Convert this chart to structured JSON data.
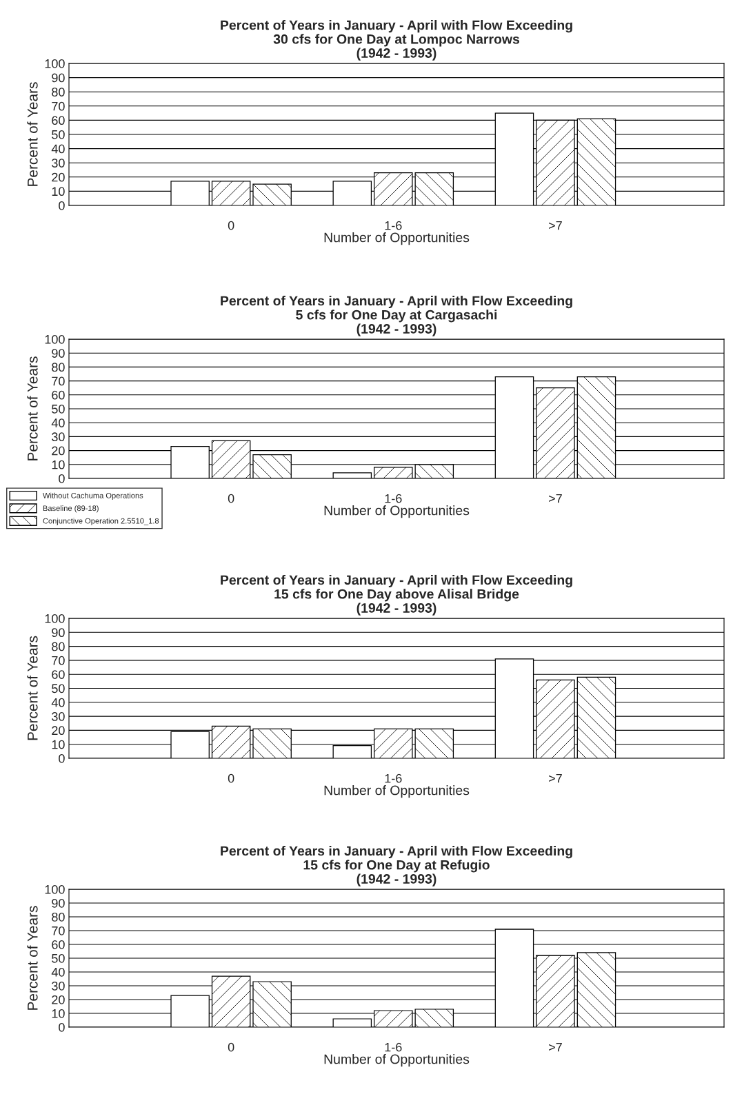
{
  "chart_data": [
    {
      "type": "bar",
      "title": "Percent of Years in January - April with Flow Exceeding\n30 cfs for One Day at Lompoc Narrows\n(1942 - 1993)",
      "xlabel": "Number of Opportunities",
      "ylabel": "Percent of Years",
      "categories": [
        "0",
        "1-6",
        ">7"
      ],
      "series": [
        {
          "color": "#ffffff",
          "values": [
            17,
            17,
            65
          ]
        },
        {
          "color": "#000000",
          "values": [
            17,
            23,
            60
          ]
        },
        {
          "color": "#000000",
          "values": [
            15,
            23,
            61
          ]
        }
      ],
      "ylim": [
        0,
        100
      ],
      "yticks": [
        0,
        10,
        20,
        30,
        40,
        50,
        60,
        70,
        80,
        90,
        100
      ],
      "grid": "y"
    },
    {
      "type": "bar",
      "title": "Percent of Years in January - April with Flow Exceeding\n5 cfs for One Day at Cargasachi\n(1942 - 1993)",
      "xlabel": "Number of Opportunities",
      "ylabel": "Percent of Years",
      "categories": [
        "0",
        "1-6",
        ">7"
      ],
      "series": [
        {
          "name": "Without Cachuma Operations",
          "color": "#ffffff",
          "values": [
            23,
            4,
            73
          ]
        },
        {
          "name": "Baseline (89-18)",
          "color": "#000000",
          "values": [
            27,
            8,
            65
          ]
        },
        {
          "name": "Conjunctive Operation 2.5510_1.8",
          "color": "#000000",
          "values": [
            17,
            10,
            73
          ]
        }
      ],
      "ylim": [
        0,
        100
      ],
      "yticks": [
        0,
        10,
        20,
        30,
        40,
        50,
        60,
        70,
        80,
        90,
        100
      ],
      "grid": "y",
      "legend": "bottom left"
    },
    {
      "type": "bar",
      "title": "Percent of Years in January - April with Flow Exceeding\n15 cfs for One Day above Alisal Bridge\n(1942 - 1993)",
      "xlabel": "Number of Opportunities",
      "ylabel": "Percent of Years",
      "categories": [
        "0",
        "1-6",
        ">7"
      ],
      "series": [
        {
          "color": "#ffffff",
          "values": [
            19,
            9,
            71
          ]
        },
        {
          "color": "#000000",
          "values": [
            23,
            21,
            56
          ]
        },
        {
          "color": "#000000",
          "values": [
            21,
            21,
            58
          ]
        }
      ],
      "ylim": [
        0,
        100
      ],
      "yticks": [
        0,
        10,
        20,
        30,
        40,
        50,
        60,
        70,
        80,
        90,
        100
      ],
      "grid": "y"
    },
    {
      "type": "bar",
      "title": "Percent of Years in January - April with Flow Exceeding\n15 cfs for One Day at Refugio\n(1942 - 1993)",
      "xlabel": "Number of Opportunities",
      "ylabel": "Percent of Years",
      "categories": [
        "0",
        "1-6",
        ">7"
      ],
      "series": [
        {
          "color": "#ffffff",
          "values": [
            23,
            6,
            71
          ]
        },
        {
          "color": "#000000",
          "values": [
            37,
            12,
            52
          ]
        },
        {
          "color": "#000000",
          "values": [
            33,
            13,
            54
          ]
        }
      ],
      "ylim": [
        0,
        100
      ],
      "yticks": [
        0,
        10,
        20,
        30,
        40,
        50,
        60,
        70,
        80,
        90,
        100
      ],
      "grid": "y"
    }
  ]
}
